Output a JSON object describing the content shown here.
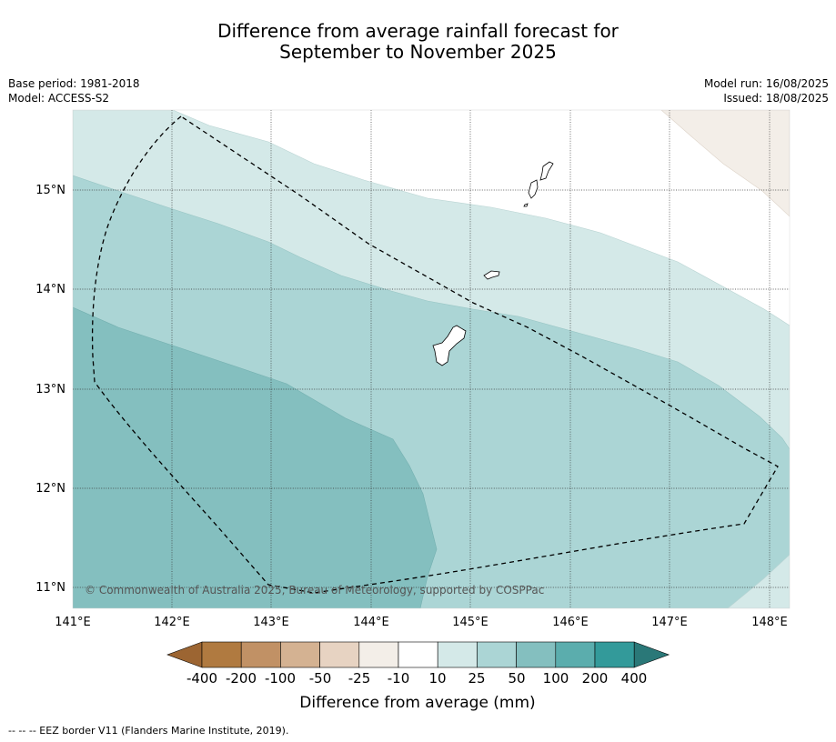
{
  "title_line1": "Difference from average rainfall forecast for",
  "title_line2": "September to November 2025",
  "left_meta": {
    "base_period": "Base period: 1981-2018",
    "model": "Model: ACCESS-S2"
  },
  "right_meta": {
    "model_run": "Model run: 16/08/2025",
    "issued": "Issued: 18/08/2025"
  },
  "map": {
    "lon_ticks": [
      "141°E",
      "142°E",
      "143°E",
      "144°E",
      "145°E",
      "146°E",
      "147°E",
      "148°E"
    ],
    "lat_ticks": [
      "15°N",
      "14°N",
      "13°N",
      "12°N",
      "11°N"
    ],
    "copyright": "© Commonwealth of Australia 2025, Bureau of Meteorology, supported by COSPPac"
  },
  "colorbar": {
    "labels": [
      "-400",
      "-200",
      "-100",
      "-50",
      "-25",
      "-10",
      "10",
      "25",
      "50",
      "100",
      "200",
      "400"
    ],
    "colors": [
      "#9c6532",
      "#b07a40",
      "#c19165",
      "#d4b292",
      "#e7d3c2",
      "#f3eee8",
      "#ffffff",
      "#d4e9e8",
      "#abd5d5",
      "#84bfbf",
      "#5badad",
      "#339a9a",
      "#2a7878"
    ],
    "title": "Difference from average (mm)"
  },
  "footnote": "--  --  -- EEZ border V11 (Flanders Marine Institute, 2019)."
}
